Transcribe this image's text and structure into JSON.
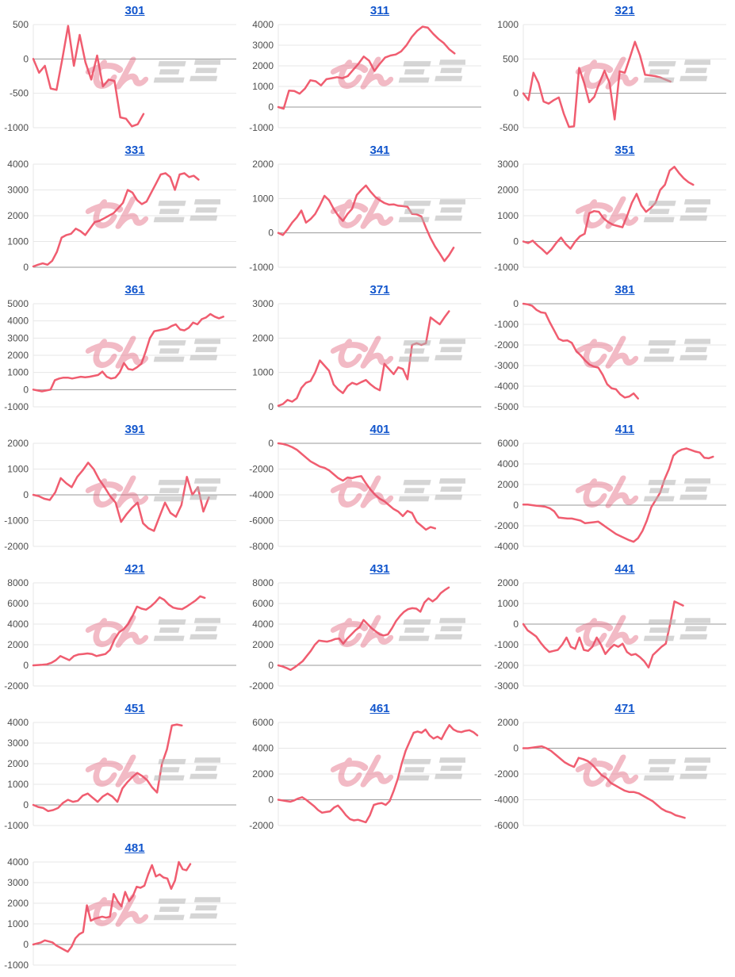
{
  "theme": {
    "background": "#ffffff",
    "link_color": "#1155cc",
    "line_color": "#f05d70",
    "grid_color": "#e7e7e7",
    "zero_line_color": "#9a9a9a",
    "tick_color": "#4d4d4d"
  },
  "watermark": {
    "text": "みんレポ",
    "pink_color": "#e05570",
    "gray_color": "#b3b3b3"
  },
  "chart_data": [
    {
      "type": "line",
      "title": "301",
      "ylim": [
        -1000,
        500
      ],
      "yticks": [
        500,
        0,
        -500,
        -1000
      ],
      "slots": 36,
      "values": [
        0,
        -200,
        -100,
        -430,
        -450,
        0,
        480,
        -100,
        350,
        -50,
        -300,
        50,
        -400,
        -300,
        -320,
        -850,
        -870,
        -980,
        -950,
        -800
      ]
    },
    {
      "type": "line",
      "title": "311",
      "ylim": [
        -1000,
        4000
      ],
      "yticks": [
        4000,
        3000,
        2000,
        1000,
        0,
        -1000
      ],
      "slots": 39,
      "values": [
        0,
        -80,
        800,
        780,
        650,
        900,
        1300,
        1250,
        1050,
        1350,
        1400,
        1450,
        1400,
        1500,
        1800,
        2100,
        2450,
        2250,
        1750,
        2100,
        2400,
        2500,
        2550,
        2700,
        3000,
        3400,
        3700,
        3900,
        3850,
        3550,
        3300,
        3100,
        2800,
        2600
      ]
    },
    {
      "type": "line",
      "title": "321",
      "ylim": [
        -500,
        1000
      ],
      "yticks": [
        1000,
        500,
        0,
        -500
      ],
      "slots": 41,
      "values": [
        0,
        -100,
        300,
        150,
        -120,
        -150,
        -100,
        -60,
        -300,
        -490,
        -480,
        370,
        150,
        -130,
        -50,
        150,
        330,
        150,
        -380,
        320,
        300,
        520,
        750,
        550,
        270,
        260,
        250,
        230,
        200,
        170
      ]
    },
    {
      "type": "line",
      "title": "331",
      "ylim": [
        0,
        4000
      ],
      "yticks": [
        4000,
        3000,
        2000,
        1000,
        0
      ],
      "slots": 44,
      "values": [
        30,
        100,
        150,
        100,
        250,
        600,
        1150,
        1250,
        1300,
        1500,
        1400,
        1250,
        1500,
        1750,
        1800,
        1900,
        2000,
        2100,
        2300,
        2500,
        3000,
        2900,
        2600,
        2450,
        2550,
        2900,
        3250,
        3600,
        3650,
        3500,
        3000,
        3600,
        3650,
        3500,
        3550,
        3400
      ]
    },
    {
      "type": "line",
      "title": "341",
      "ylim": [
        -1000,
        2000
      ],
      "yticks": [
        2000,
        1000,
        0,
        -1000
      ],
      "slots": 45,
      "values": [
        0,
        -60,
        100,
        300,
        450,
        650,
        300,
        400,
        550,
        800,
        1080,
        950,
        700,
        500,
        350,
        550,
        700,
        1100,
        1250,
        1380,
        1200,
        1050,
        950,
        870,
        820,
        830,
        790,
        780,
        760,
        550,
        540,
        480,
        150,
        -150,
        -400,
        -600,
        -820,
        -650,
        -430
      ]
    },
    {
      "type": "line",
      "title": "351",
      "ylim": [
        -1000,
        3000
      ],
      "yticks": [
        3000,
        2000,
        1000,
        0,
        -1000
      ],
      "slots": 44,
      "values": [
        0,
        -60,
        30,
        -150,
        -300,
        -480,
        -300,
        -50,
        150,
        -100,
        -280,
        0,
        200,
        300,
        1100,
        1180,
        1150,
        900,
        750,
        650,
        600,
        550,
        1000,
        1500,
        1850,
        1400,
        1150,
        1300,
        1500,
        2000,
        2200,
        2750,
        2900,
        2650,
        2450,
        2300,
        2200
      ]
    },
    {
      "type": "line",
      "title": "361",
      "ylim": [
        -1000,
        5000
      ],
      "yticks": [
        5000,
        4000,
        3000,
        2000,
        1000,
        0,
        -1000
      ],
      "slots": 48,
      "values": [
        0,
        -50,
        -100,
        -50,
        0,
        550,
        650,
        700,
        700,
        650,
        700,
        750,
        720,
        750,
        800,
        850,
        1050,
        750,
        650,
        700,
        1000,
        1550,
        1200,
        1150,
        1300,
        1500,
        2200,
        3000,
        3400,
        3450,
        3500,
        3550,
        3700,
        3800,
        3500,
        3450,
        3600,
        3900,
        3800,
        4100,
        4200,
        4400,
        4250,
        4150,
        4250
      ]
    },
    {
      "type": "line",
      "title": "371",
      "ylim": [
        0,
        3000
      ],
      "yticks": [
        3000,
        2000,
        1000,
        0
      ],
      "slots": 45,
      "values": [
        30,
        80,
        200,
        150,
        250,
        550,
        700,
        750,
        1000,
        1350,
        1200,
        1050,
        650,
        500,
        400,
        600,
        700,
        650,
        720,
        780,
        650,
        550,
        480,
        1250,
        1100,
        950,
        1150,
        1100,
        800,
        1800,
        1850,
        1800,
        1850,
        2600,
        2500,
        2400,
        2600,
        2780
      ]
    },
    {
      "type": "line",
      "title": "381",
      "ylim": [
        -5000,
        0
      ],
      "yticks": [
        0,
        -1000,
        -2000,
        -3000,
        -4000,
        -5000
      ],
      "slots": 47,
      "values": [
        0,
        -30,
        -100,
        -300,
        -420,
        -450,
        -900,
        -1300,
        -1700,
        -1800,
        -1780,
        -1900,
        -2300,
        -2500,
        -2750,
        -2950,
        -3050,
        -3100,
        -3450,
        -3900,
        -4100,
        -4150,
        -4400,
        -4550,
        -4500,
        -4350,
        -4600
      ]
    },
    {
      "type": "line",
      "title": "391",
      "ylim": [
        -2000,
        2000
      ],
      "yticks": [
        2000,
        1000,
        0,
        -1000,
        -2000
      ],
      "slots": 38,
      "values": [
        0,
        -50,
        -150,
        -200,
        100,
        650,
        450,
        300,
        700,
        950,
        1250,
        1000,
        600,
        300,
        -50,
        -300,
        -1050,
        -750,
        -500,
        -300,
        -1100,
        -1300,
        -1400,
        -850,
        -300,
        -700,
        -850,
        -400,
        700,
        0,
        300,
        -650,
        -100
      ]
    },
    {
      "type": "line",
      "title": "401",
      "ylim": [
        -8000,
        0
      ],
      "yticks": [
        0,
        -2000,
        -4000,
        -6000,
        -8000
      ],
      "slots": 45,
      "values": [
        0,
        -50,
        -150,
        -300,
        -500,
        -800,
        -1100,
        -1400,
        -1600,
        -1800,
        -1900,
        -2100,
        -2400,
        -2700,
        -2900,
        -2650,
        -2700,
        -2600,
        -2550,
        -3100,
        -3600,
        -4000,
        -4300,
        -4500,
        -4800,
        -5100,
        -5300,
        -5650,
        -5250,
        -5400,
        -6100,
        -6400,
        -6700,
        -6500,
        -6600
      ]
    },
    {
      "type": "line",
      "title": "411",
      "ylim": [
        -4000,
        6000
      ],
      "yticks": [
        6000,
        4000,
        2000,
        0,
        -2000,
        -4000
      ],
      "slots": 47,
      "values": [
        50,
        50,
        0,
        -50,
        -100,
        -150,
        -300,
        -600,
        -1200,
        -1250,
        -1300,
        -1300,
        -1400,
        -1500,
        -1750,
        -1700,
        -1650,
        -1600,
        -1900,
        -2200,
        -2500,
        -2800,
        -3000,
        -3200,
        -3400,
        -3550,
        -3200,
        -2500,
        -1500,
        -200,
        500,
        1200,
        2500,
        3500,
        4800,
        5200,
        5400,
        5500,
        5350,
        5200,
        5100,
        4600,
        4550,
        4700
      ]
    },
    {
      "type": "line",
      "title": "421",
      "ylim": [
        -2000,
        8000
      ],
      "yticks": [
        8000,
        6000,
        4000,
        2000,
        0,
        -2000
      ],
      "slots": 46,
      "values": [
        0,
        30,
        50,
        100,
        250,
        500,
        900,
        700,
        500,
        900,
        1050,
        1100,
        1150,
        1100,
        900,
        1000,
        1100,
        1500,
        2500,
        3200,
        3500,
        4000,
        4800,
        5700,
        5500,
        5400,
        5700,
        6100,
        6600,
        6350,
        5900,
        5600,
        5500,
        5450,
        5700,
        6000,
        6300,
        6700,
        6550
      ]
    },
    {
      "type": "line",
      "title": "431",
      "ylim": [
        -2000,
        8000
      ],
      "yticks": [
        8000,
        6000,
        4000,
        2000,
        0,
        -2000
      ],
      "slots": 51,
      "values": [
        0,
        -100,
        -250,
        -450,
        -200,
        100,
        400,
        900,
        1400,
        2000,
        2400,
        2350,
        2300,
        2400,
        2550,
        2600,
        2100,
        2600,
        3000,
        3400,
        3700,
        4400,
        4000,
        3600,
        3300,
        3000,
        2900,
        3000,
        3600,
        4300,
        4800,
        5200,
        5450,
        5550,
        5500,
        5200,
        6100,
        6500,
        6200,
        6500,
        7000,
        7300,
        7550
      ]
    },
    {
      "type": "line",
      "title": "441",
      "ylim": [
        -3000,
        2000
      ],
      "yticks": [
        2000,
        1000,
        0,
        -1000,
        -2000,
        -3000
      ],
      "slots": 48,
      "values": [
        0,
        -300,
        -450,
        -600,
        -900,
        -1150,
        -1350,
        -1300,
        -1250,
        -1000,
        -650,
        -1100,
        -1200,
        -650,
        -1250,
        -1300,
        -1100,
        -650,
        -1000,
        -1450,
        -1200,
        -1000,
        -1100,
        -950,
        -1350,
        -1500,
        -1450,
        -1600,
        -1800,
        -2100,
        -1500,
        -1300,
        -1100,
        -950,
        0,
        1100,
        1000,
        900
      ]
    },
    {
      "type": "line",
      "title": "451",
      "ylim": [
        -1000,
        4000
      ],
      "yticks": [
        4000,
        3000,
        2000,
        1000,
        0,
        -1000
      ],
      "slots": 42,
      "values": [
        0,
        -100,
        -150,
        -300,
        -250,
        -150,
        100,
        250,
        150,
        200,
        450,
        550,
        350,
        150,
        400,
        550,
        400,
        150,
        800,
        1100,
        1350,
        1550,
        1400,
        1200,
        850,
        600,
        2000,
        2700,
        3850,
        3900,
        3850
      ]
    },
    {
      "type": "line",
      "title": "461",
      "ylim": [
        -2000,
        6000
      ],
      "yticks": [
        6000,
        4000,
        2000,
        0,
        -2000
      ],
      "slots": 52,
      "values": [
        0,
        -50,
        -100,
        -150,
        -50,
        100,
        200,
        0,
        -250,
        -500,
        -800,
        -1000,
        -950,
        -900,
        -600,
        -450,
        -800,
        -1200,
        -1500,
        -1600,
        -1550,
        -1650,
        -1750,
        -1200,
        -400,
        -300,
        -250,
        -400,
        -100,
        700,
        1600,
        2800,
        3800,
        4500,
        5200,
        5300,
        5200,
        5450,
        5000,
        4750,
        4900,
        4700,
        5300,
        5800,
        5450,
        5300,
        5250,
        5350,
        5400,
        5250,
        5000
      ]
    },
    {
      "type": "line",
      "title": "471",
      "ylim": [
        -6000,
        2000
      ],
      "yticks": [
        2000,
        0,
        -2000,
        -4000,
        -6000
      ],
      "slots": 45,
      "values": [
        0,
        0,
        50,
        100,
        150,
        0,
        -200,
        -500,
        -800,
        -1100,
        -1300,
        -1450,
        -750,
        -850,
        -1000,
        -1300,
        -1700,
        -2100,
        -2300,
        -2700,
        -2900,
        -3100,
        -3300,
        -3400,
        -3400,
        -3500,
        -3700,
        -3900,
        -4100,
        -4400,
        -4700,
        -4900,
        -5000,
        -5200,
        -5300,
        -5400
      ]
    },
    {
      "type": "line",
      "title": "481",
      "ylim": [
        -1000,
        4000
      ],
      "yticks": [
        4000,
        3000,
        2000,
        1000,
        0,
        -1000
      ],
      "slots": 54,
      "values": [
        0,
        50,
        100,
        200,
        150,
        100,
        -50,
        -150,
        -250,
        -350,
        -100,
        300,
        500,
        600,
        1900,
        1150,
        1250,
        1300,
        1350,
        1300,
        1350,
        2450,
        2100,
        1850,
        2550,
        2100,
        2350,
        2800,
        2750,
        2850,
        3400,
        3850,
        3300,
        3400,
        3250,
        3200,
        2700,
        3100,
        4000,
        3650,
        3600,
        3900
      ]
    }
  ]
}
